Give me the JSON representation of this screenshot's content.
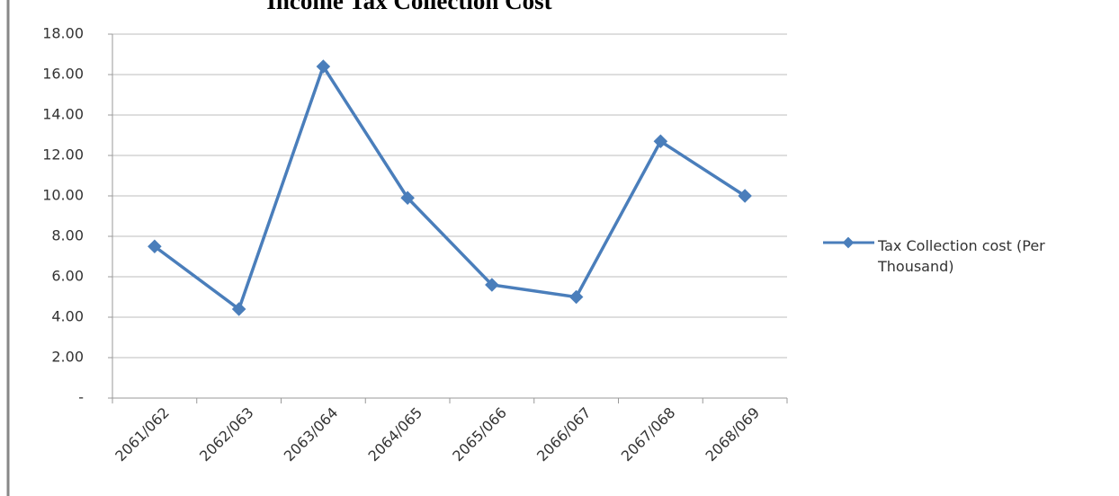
{
  "chart_data": {
    "type": "line",
    "title": "Income Tax Collection Cost",
    "categories": [
      "2061/062",
      "2062/063",
      "2063/064",
      "2064/065",
      "2065/066",
      "2066/067",
      "2067/068",
      "2068/069"
    ],
    "series": [
      {
        "name": "Tax Collection cost (Per Thousand)",
        "color": "#4a7ebb",
        "values": [
          7.5,
          4.4,
          16.4,
          9.9,
          5.6,
          5.0,
          12.7,
          10.0
        ]
      }
    ],
    "ylim": [
      0,
      18
    ],
    "yticks": [
      {
        "value": 0,
        "label": "-"
      },
      {
        "value": 2,
        "label": "2.00"
      },
      {
        "value": 4,
        "label": "4.00"
      },
      {
        "value": 6,
        "label": "6.00"
      },
      {
        "value": 8,
        "label": "8.00"
      },
      {
        "value": 10,
        "label": "10.00"
      },
      {
        "value": 12,
        "label": "12.00"
      },
      {
        "value": 14,
        "label": "14.00"
      },
      {
        "value": 16,
        "label": "16.00"
      },
      {
        "value": 18,
        "label": "18.00"
      }
    ],
    "grid": true,
    "legend": "right"
  }
}
